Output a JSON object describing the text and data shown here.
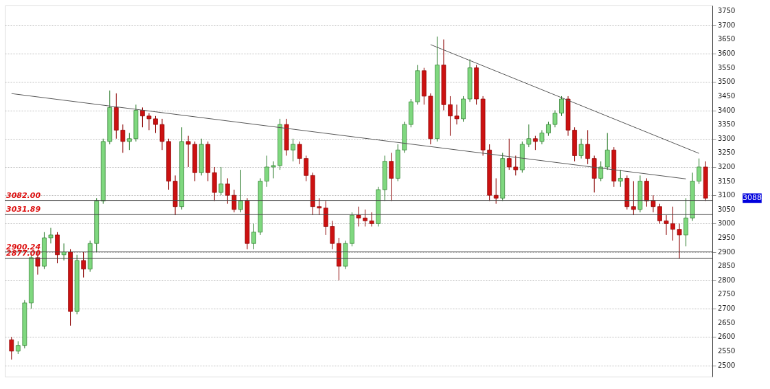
{
  "chart_data": {
    "type": "candlestick",
    "categories": [
      null,
      null,
      null,
      null,
      null,
      null,
      null,
      null,
      null,
      null,
      null,
      null,
      null,
      null,
      null,
      null,
      null,
      null,
      null,
      null,
      null,
      null,
      null,
      null,
      null,
      null,
      null,
      null,
      null,
      null,
      null,
      null,
      null,
      null,
      null,
      null,
      null,
      null,
      null,
      null,
      null,
      null,
      null,
      null,
      null,
      null,
      null,
      null,
      null,
      null,
      null,
      null,
      null,
      null,
      null,
      null,
      null,
      null,
      null,
      null,
      null,
      null,
      null,
      null,
      null,
      null,
      null,
      null,
      null,
      null,
      null,
      null,
      null,
      null,
      null,
      null,
      null,
      null,
      null,
      null,
      null,
      null,
      null,
      null,
      null,
      null,
      null,
      null,
      null,
      null,
      null,
      null,
      null,
      null,
      null,
      null,
      null,
      null,
      null,
      null,
      null,
      null,
      null,
      null,
      null,
      null,
      null
    ],
    "ohlc": [
      [
        2590,
        2600,
        2520,
        2550
      ],
      [
        2550,
        2585,
        2540,
        2570
      ],
      [
        2570,
        2730,
        2560,
        2720
      ],
      [
        2720,
        2890,
        2700,
        2880
      ],
      [
        2880,
        2900,
        2820,
        2850
      ],
      [
        2850,
        2970,
        2840,
        2950
      ],
      [
        2950,
        2985,
        2930,
        2960
      ],
      [
        2960,
        2970,
        2860,
        2890
      ],
      [
        2890,
        2930,
        2870,
        2900
      ],
      [
        2900,
        2910,
        2640,
        2690
      ],
      [
        2690,
        2890,
        2680,
        2870
      ],
      [
        2870,
        2900,
        2810,
        2840
      ],
      [
        2840,
        2940,
        2830,
        2930
      ],
      [
        2930,
        3090,
        2900,
        3080
      ],
      [
        3080,
        3300,
        3070,
        3290
      ],
      [
        3290,
        3470,
        3280,
        3410
      ],
      [
        3410,
        3460,
        3300,
        3330
      ],
      [
        3330,
        3350,
        3250,
        3290
      ],
      [
        3290,
        3320,
        3260,
        3300
      ],
      [
        3300,
        3420,
        3290,
        3400
      ],
      [
        3400,
        3410,
        3340,
        3380
      ],
      [
        3380,
        3390,
        3330,
        3370
      ],
      [
        3370,
        3380,
        3320,
        3350
      ],
      [
        3350,
        3370,
        3260,
        3290
      ],
      [
        3290,
        3300,
        3120,
        3150
      ],
      [
        3150,
        3170,
        3030,
        3060
      ],
      [
        3060,
        3340,
        3050,
        3290
      ],
      [
        3290,
        3310,
        3200,
        3280
      ],
      [
        3280,
        3290,
        3150,
        3180
      ],
      [
        3180,
        3300,
        3170,
        3280
      ],
      [
        3280,
        3290,
        3150,
        3180
      ],
      [
        3180,
        3200,
        3080,
        3110
      ],
      [
        3110,
        3200,
        3100,
        3140
      ],
      [
        3140,
        3160,
        3070,
        3100
      ],
      [
        3100,
        3120,
        3040,
        3050
      ],
      [
        3050,
        3190,
        3040,
        3080
      ],
      [
        3080,
        3090,
        2910,
        2930
      ],
      [
        2930,
        3000,
        2910,
        2970
      ],
      [
        2970,
        3160,
        2960,
        3150
      ],
      [
        3150,
        3240,
        3130,
        3200
      ],
      [
        3200,
        3220,
        3160,
        3205
      ],
      [
        3205,
        3370,
        3190,
        3350
      ],
      [
        3350,
        3370,
        3240,
        3260
      ],
      [
        3260,
        3300,
        3220,
        3280
      ],
      [
        3280,
        3290,
        3210,
        3230
      ],
      [
        3230,
        3240,
        3150,
        3170
      ],
      [
        3170,
        3180,
        3030,
        3060
      ],
      [
        3060,
        3090,
        3030,
        3055
      ],
      [
        3055,
        3080,
        2960,
        2990
      ],
      [
        2990,
        3010,
        2910,
        2930
      ],
      [
        2930,
        2950,
        2800,
        2850
      ],
      [
        2850,
        2940,
        2840,
        2930
      ],
      [
        2930,
        3040,
        2920,
        3030
      ],
      [
        3030,
        3060,
        2990,
        3020
      ],
      [
        3020,
        3050,
        2990,
        3010
      ],
      [
        3010,
        3040,
        2990,
        3000
      ],
      [
        3000,
        3130,
        2990,
        3120
      ],
      [
        3120,
        3240,
        3080,
        3220
      ],
      [
        3220,
        3250,
        3080,
        3160
      ],
      [
        3160,
        3280,
        3150,
        3260
      ],
      [
        3260,
        3360,
        3250,
        3350
      ],
      [
        3350,
        3440,
        3340,
        3430
      ],
      [
        3430,
        3560,
        3420,
        3540
      ],
      [
        3540,
        3550,
        3420,
        3450
      ],
      [
        3450,
        3460,
        3280,
        3300
      ],
      [
        3300,
        3660,
        3290,
        3560
      ],
      [
        3560,
        3650,
        3400,
        3420
      ],
      [
        3420,
        3450,
        3310,
        3380
      ],
      [
        3380,
        3420,
        3350,
        3370
      ],
      [
        3370,
        3450,
        3360,
        3440
      ],
      [
        3440,
        3580,
        3430,
        3550
      ],
      [
        3550,
        3560,
        3420,
        3440
      ],
      [
        3440,
        3450,
        3240,
        3260
      ],
      [
        3260,
        3280,
        3080,
        3100
      ],
      [
        3100,
        3160,
        3070,
        3090
      ],
      [
        3090,
        3250,
        3080,
        3230
      ],
      [
        3230,
        3300,
        3190,
        3200
      ],
      [
        3200,
        3240,
        3170,
        3190
      ],
      [
        3190,
        3290,
        3180,
        3280
      ],
      [
        3280,
        3350,
        3270,
        3300
      ],
      [
        3300,
        3310,
        3260,
        3290
      ],
      [
        3290,
        3330,
        3280,
        3320
      ],
      [
        3320,
        3360,
        3310,
        3350
      ],
      [
        3350,
        3400,
        3340,
        3390
      ],
      [
        3390,
        3450,
        3380,
        3440
      ],
      [
        3440,
        3450,
        3310,
        3330
      ],
      [
        3330,
        3340,
        3220,
        3240
      ],
      [
        3240,
        3300,
        3230,
        3280
      ],
      [
        3280,
        3330,
        3210,
        3230
      ],
      [
        3230,
        3240,
        3110,
        3160
      ],
      [
        3160,
        3220,
        3150,
        3200
      ],
      [
        3200,
        3320,
        3190,
        3260
      ],
      [
        3260,
        3270,
        3130,
        3150
      ],
      [
        3150,
        3190,
        3130,
        3160
      ],
      [
        3160,
        3170,
        3050,
        3060
      ],
      [
        3060,
        3150,
        3030,
        3050
      ],
      [
        3050,
        3170,
        3040,
        3150
      ],
      [
        3150,
        3160,
        3060,
        3080
      ],
      [
        3080,
        3100,
        3040,
        3060
      ],
      [
        3060,
        3070,
        3000,
        3010
      ],
      [
        3010,
        3030,
        2960,
        3000
      ],
      [
        3000,
        3060,
        2940,
        2980
      ],
      [
        2980,
        3000,
        2877,
        2960
      ],
      [
        2960,
        3090,
        2920,
        3020
      ],
      [
        3020,
        3180,
        3010,
        3150
      ],
      [
        3150,
        3230,
        3140,
        3200
      ],
      [
        3200,
        3220,
        3080,
        3090
      ]
    ],
    "colors": [
      "#cc1111",
      "#7fd87f",
      "#7fd87f",
      "#7fd87f",
      "#cc1111",
      "#7fd87f",
      "#7fd87f",
      "#cc1111",
      "#7fd87f",
      "#cc1111",
      "#7fd87f",
      "#cc1111",
      "#7fd87f",
      "#7fd87f",
      "#7fd87f",
      "#7fd87f",
      "#cc1111",
      "#cc1111",
      "#7fd87f",
      "#7fd87f",
      "#cc1111",
      "#cc1111",
      "#cc1111",
      "#cc1111",
      "#cc1111",
      "#cc1111",
      "#7fd87f",
      "#cc1111",
      "#cc1111",
      "#7fd87f",
      "#cc1111",
      "#cc1111",
      "#7fd87f",
      "#cc1111",
      "#cc1111",
      "#7fd87f",
      "#cc1111",
      "#7fd87f",
      "#7fd87f",
      "#7fd87f",
      "#7fd87f",
      "#7fd87f",
      "#cc1111",
      "#7fd87f",
      "#cc1111",
      "#cc1111",
      "#cc1111",
      "#cc1111",
      "#cc1111",
      "#cc1111",
      "#cc1111",
      "#7fd87f",
      "#7fd87f",
      "#cc1111",
      "#cc1111",
      "#cc1111",
      "#7fd87f",
      "#7fd87f",
      "#cc1111",
      "#7fd87f",
      "#7fd87f",
      "#7fd87f",
      "#7fd87f",
      "#cc1111",
      "#cc1111",
      "#7fd87f",
      "#cc1111",
      "#cc1111",
      "#cc1111",
      "#7fd87f",
      "#7fd87f",
      "#cc1111",
      "#cc1111",
      "#cc1111",
      "#cc1111",
      "#7fd87f",
      "#cc1111",
      "#cc1111",
      "#7fd87f",
      "#7fd87f",
      "#cc1111",
      "#7fd87f",
      "#7fd87f",
      "#7fd87f",
      "#7fd87f",
      "#cc1111",
      "#cc1111",
      "#7fd87f",
      "#cc1111",
      "#cc1111",
      "#7fd87f",
      "#7fd87f",
      "#cc1111",
      "#7fd87f",
      "#cc1111",
      "#cc1111",
      "#7fd87f",
      "#cc1111",
      "#cc1111",
      "#cc1111",
      "#cc1111",
      "#cc1111",
      "#cc1111",
      "#7fd87f",
      "#7fd87f",
      "#7fd87f",
      "#cc1111"
    ],
    "series": [
      {
        "type": "line",
        "color": "#555555",
        "values": [
          3459,
          null,
          null,
          null,
          null,
          null,
          null,
          null,
          null,
          null,
          null,
          null,
          null,
          null,
          null,
          null,
          null,
          null,
          null,
          null,
          null,
          null,
          null,
          null,
          null,
          null,
          null,
          null,
          null,
          null,
          null,
          null,
          null,
          null,
          null,
          null,
          null,
          null,
          null,
          null,
          null,
          null,
          null,
          null,
          null,
          null,
          null,
          null,
          null,
          null,
          null,
          null,
          null,
          null,
          null,
          null,
          null,
          null,
          null,
          null,
          null,
          null,
          null,
          null,
          null,
          null,
          null,
          null,
          null,
          null,
          null,
          null,
          null,
          null,
          null,
          null,
          null,
          null,
          null,
          null,
          null,
          null,
          null,
          null,
          null,
          null,
          null,
          null,
          null,
          null,
          null,
          null,
          null,
          null,
          null,
          null,
          null,
          null,
          null,
          null,
          null,
          null,
          null,
          3158,
          null,
          null,
          null
        ]
      },
      {
        "type": "line",
        "color": "#555555",
        "values": [
          null,
          null,
          null,
          null,
          null,
          null,
          null,
          null,
          null,
          null,
          null,
          null,
          null,
          null,
          null,
          null,
          null,
          null,
          null,
          null,
          null,
          null,
          null,
          null,
          null,
          null,
          null,
          null,
          null,
          null,
          null,
          null,
          null,
          null,
          null,
          null,
          null,
          null,
          null,
          null,
          null,
          null,
          null,
          null,
          null,
          null,
          null,
          null,
          null,
          null,
          null,
          null,
          null,
          null,
          null,
          null,
          null,
          null,
          null,
          null,
          null,
          null,
          null,
          null,
          3632,
          null,
          null,
          null,
          null,
          null,
          null,
          null,
          null,
          null,
          null,
          null,
          null,
          null,
          null,
          null,
          null,
          null,
          null,
          null,
          null,
          null,
          null,
          null,
          null,
          null,
          null,
          null,
          null,
          null,
          null,
          null,
          null,
          null,
          null,
          null,
          null,
          null,
          null,
          null,
          null,
          3248,
          null
        ]
      }
    ],
    "ylim": [
      2460,
      3770
    ],
    "yticks": [
      2500,
      2550,
      2600,
      2650,
      2700,
      2750,
      2800,
      2850,
      2900,
      2950,
      3000,
      3050,
      3100,
      3150,
      3200,
      3250,
      3300,
      3350,
      3400,
      3450,
      3500,
      3550,
      3600,
      3650,
      3700,
      3750
    ],
    "ref_lines": [
      {
        "axis": "y",
        "value": 3082,
        "label": "3082.00",
        "color": "#444444"
      },
      {
        "axis": "y",
        "value": 3031.89,
        "label": "3031.89",
        "color": "#444444"
      },
      {
        "axis": "y",
        "value": 2900.24,
        "label": "2900.24",
        "color": "#444444"
      },
      {
        "axis": "y",
        "value": 2877,
        "label": "2877.00",
        "color": "#444444"
      }
    ],
    "annotations": [
      "3088"
    ],
    "grid": "y",
    "tick_labels": "y"
  }
}
